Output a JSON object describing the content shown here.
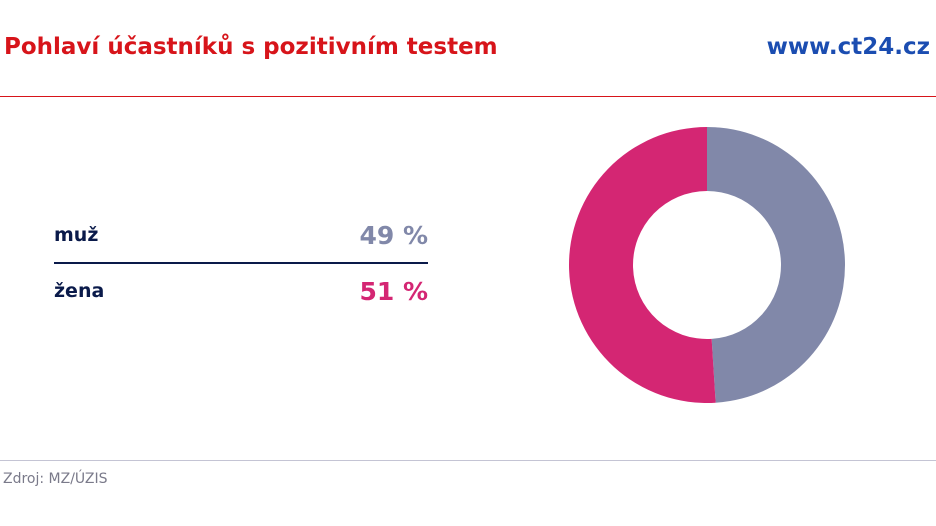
{
  "header": {
    "title": "Pohlaví účastníků s pozitivním testem",
    "site": "www.ct24.cz"
  },
  "chart_data": {
    "type": "pie",
    "variant": "donut",
    "title": "Pohlaví účastníků s pozitivním testem",
    "categories": [
      "muž",
      "žena"
    ],
    "values": [
      49,
      51
    ],
    "value_labels": [
      "49 %",
      "51 %"
    ],
    "unit": "%",
    "colors": [
      "#8188a9",
      "#d42673"
    ],
    "legend": "left",
    "start_angle_deg": 0,
    "direction": "clockwise"
  },
  "footer": {
    "source": "Zdroj: MZ/ÚZIS"
  },
  "colors": {
    "title": "#d7141a",
    "brand": "#1b4db1",
    "label": "#0a1a4a"
  }
}
